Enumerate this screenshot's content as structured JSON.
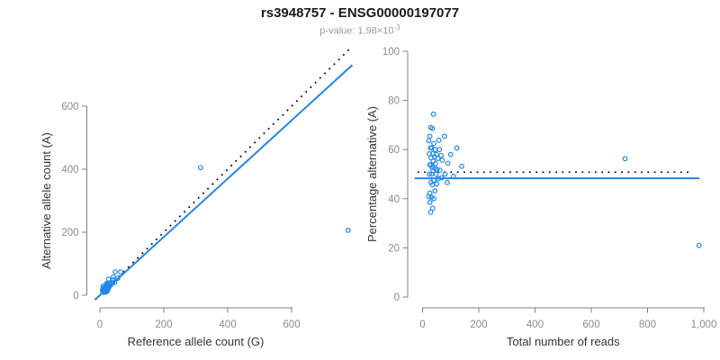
{
  "title": "rs3948757 - ENSG00000197077",
  "subtitle": {
    "prefix": "p-value: 1.98×10",
    "exponent": "-3"
  },
  "colors": {
    "accent_blue": "#2188E8",
    "identity_black": "#000000",
    "axis_gray": "#808080",
    "tick_label_gray": "#8c8c8c",
    "axis_label_dark": "#333333",
    "title_black": "#1a1a1a",
    "subtitle_gray": "#9c9c9c"
  },
  "chart_data": [
    {
      "type": "scatter",
      "title": "rs3948757 - ENSG00000197077",
      "xlabel": "Reference allele count (G)",
      "ylabel": "Alternative allele count (A)",
      "xlim": [
        0,
        790
      ],
      "ylim": [
        0,
        780
      ],
      "grid": false,
      "xticks": {
        "values": [
          0,
          200,
          400,
          600
        ],
        "labels": [
          "0",
          "200",
          "400",
          "600"
        ]
      },
      "yticks": {
        "values": [
          0,
          200,
          400,
          600
        ],
        "labels": [
          "0",
          "200",
          "400",
          "600"
        ]
      },
      "lines": [
        {
          "name": "identity-line",
          "style": "dotted",
          "slope": 1,
          "intercept": 0
        },
        {
          "name": "fit-line",
          "style": "solid",
          "slope": 0.925,
          "intercept": 0
        }
      ],
      "points": [
        [
          10,
          29
        ],
        [
          9,
          20
        ],
        [
          11,
          24
        ],
        [
          9,
          17
        ],
        [
          27,
          51
        ],
        [
          21,
          37
        ],
        [
          15,
          25
        ],
        [
          8,
          14
        ],
        [
          48,
          74
        ],
        [
          13,
          20
        ],
        [
          18,
          27
        ],
        [
          24,
          36
        ],
        [
          11,
          17
        ],
        [
          15,
          21
        ],
        [
          21,
          29
        ],
        [
          10,
          14
        ],
        [
          18,
          24
        ],
        [
          28,
          38
        ],
        [
          13,
          17
        ],
        [
          42,
          58
        ],
        [
          17,
          21
        ],
        [
          24,
          31
        ],
        [
          12,
          14
        ],
        [
          21,
          25
        ],
        [
          31,
          39
        ],
        [
          16,
          18
        ],
        [
          41,
          49
        ],
        [
          21,
          23
        ],
        [
          65,
          74
        ],
        [
          13,
          15
        ],
        [
          25,
          27
        ],
        [
          18,
          19
        ],
        [
          30,
          32
        ],
        [
          12,
          12
        ],
        [
          24,
          24
        ],
        [
          40,
          40
        ],
        [
          16,
          16
        ],
        [
          29,
          27
        ],
        [
          56,
          54
        ],
        [
          21,
          19
        ],
        [
          35,
          33
        ],
        [
          16,
          14
        ],
        [
          27,
          23
        ],
        [
          47,
          41
        ],
        [
          19,
          16
        ],
        [
          15,
          11
        ],
        [
          25,
          19
        ],
        [
          13,
          9
        ],
        [
          19,
          13
        ],
        [
          24,
          16
        ],
        [
          16,
          10
        ],
        [
          23,
          13
        ],
        [
          19,
          10
        ],
        [
          315,
          405
        ],
        [
          777,
          206
        ]
      ]
    },
    {
      "type": "scatter",
      "title": "rs3948757 - ENSG00000197077",
      "xlabel": "Total number of reads",
      "ylabel": "Percentage alternative (A)",
      "xlim": [
        0,
        1000
      ],
      "ylim": [
        0,
        100
      ],
      "grid": false,
      "xticks": {
        "values": [
          0,
          200,
          400,
          600,
          800,
          1000
        ],
        "labels": [
          "0",
          "200",
          "400",
          "600",
          "800",
          "1,000"
        ]
      },
      "yticks": {
        "values": [
          0,
          20,
          40,
          60,
          80,
          100
        ],
        "labels": [
          "0",
          "20",
          "40",
          "60",
          "80",
          "100"
        ]
      },
      "lines": [
        {
          "name": "expected-50pct-line",
          "style": "dotted",
          "y": 50.8
        },
        {
          "name": "fit-line",
          "style": "solid",
          "y": 48.3
        }
      ],
      "points": [
        [
          39,
          74.4
        ],
        [
          29,
          69
        ],
        [
          35,
          68.6
        ],
        [
          26,
          65.4
        ],
        [
          78,
          65.4
        ],
        [
          58,
          63.8
        ],
        [
          40,
          62.5
        ],
        [
          22,
          63.6
        ],
        [
          122,
          60.7
        ],
        [
          33,
          60.6
        ],
        [
          45,
          60
        ],
        [
          60,
          60
        ],
        [
          28,
          60.7
        ],
        [
          36,
          58.3
        ],
        [
          50,
          58
        ],
        [
          24,
          58.3
        ],
        [
          42,
          57.1
        ],
        [
          66,
          57.6
        ],
        [
          30,
          56.7
        ],
        [
          100,
          58
        ],
        [
          38,
          55.3
        ],
        [
          55,
          56.4
        ],
        [
          26,
          53.8
        ],
        [
          46,
          54.3
        ],
        [
          70,
          55.7
        ],
        [
          34,
          52.9
        ],
        [
          90,
          54.4
        ],
        [
          44,
          52.3
        ],
        [
          139,
          53.2
        ],
        [
          28,
          53.6
        ],
        [
          52,
          51.9
        ],
        [
          37,
          51.4
        ],
        [
          62,
          51.6
        ],
        [
          24,
          50
        ],
        [
          48,
          50
        ],
        [
          80,
          50
        ],
        [
          32,
          50
        ],
        [
          56,
          48.2
        ],
        [
          110,
          49.1
        ],
        [
          40,
          47.5
        ],
        [
          68,
          48.5
        ],
        [
          30,
          46.7
        ],
        [
          50,
          46
        ],
        [
          88,
          46.6
        ],
        [
          35,
          45.7
        ],
        [
          26,
          42.3
        ],
        [
          44,
          43.2
        ],
        [
          22,
          40.9
        ],
        [
          32,
          40.6
        ],
        [
          40,
          40
        ],
        [
          26,
          38.5
        ],
        [
          36,
          36.1
        ],
        [
          29,
          34.5
        ],
        [
          720,
          56.3
        ],
        [
          983,
          21
        ]
      ]
    }
  ]
}
